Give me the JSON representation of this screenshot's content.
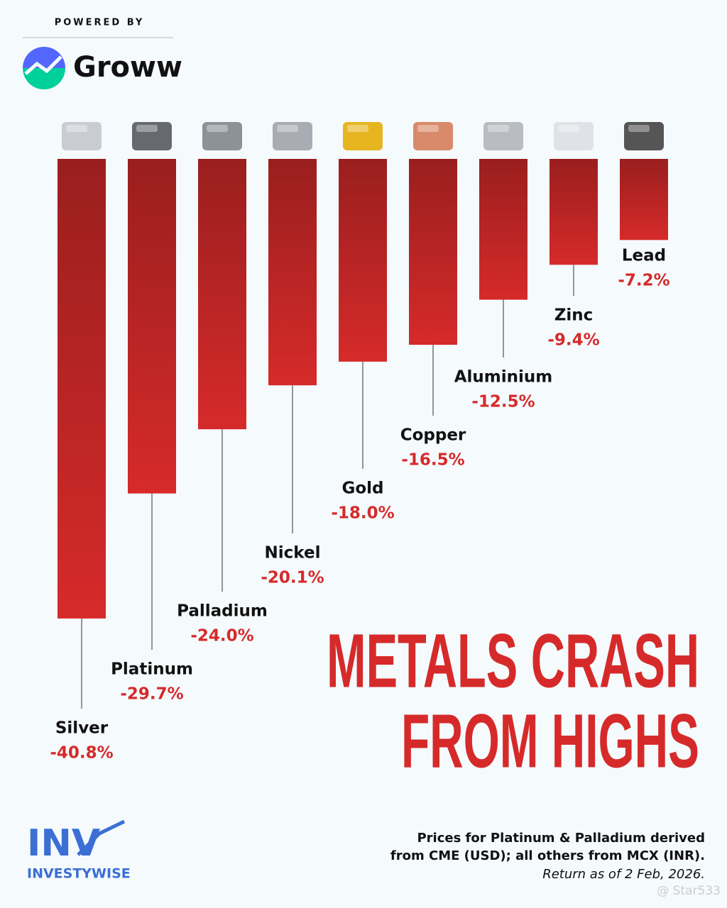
{
  "chart_data": {
    "type": "bar",
    "powered_by": "POWERED BY",
    "brand": "Groww",
    "title": [
      "METALS CRASH",
      "FROM HIGHS"
    ],
    "categories": [
      "Silver",
      "Platinum",
      "Palladium",
      "Nickel",
      "Gold",
      "Copper",
      "Aluminium",
      "Zinc",
      "Lead"
    ],
    "values": [
      -40.8,
      -29.7,
      -24.0,
      -20.1,
      -18.0,
      -16.5,
      -12.5,
      -9.4,
      -7.2
    ],
    "value_labels": [
      "-40.8%",
      "-29.7%",
      "-24.0%",
      "-20.1%",
      "-18.0%",
      "-16.5%",
      "-12.5%",
      "-9.4%",
      "-7.2%"
    ],
    "color": "#d62a2a",
    "footnote": [
      "Prices for Platinum & Palladium derived",
      "from CME (USD); all others from MCX (INR).",
      "Return as of 2 Feb, 2026."
    ],
    "source_logo": "INVESTYWISE",
    "watermark": "@ Star533"
  }
}
